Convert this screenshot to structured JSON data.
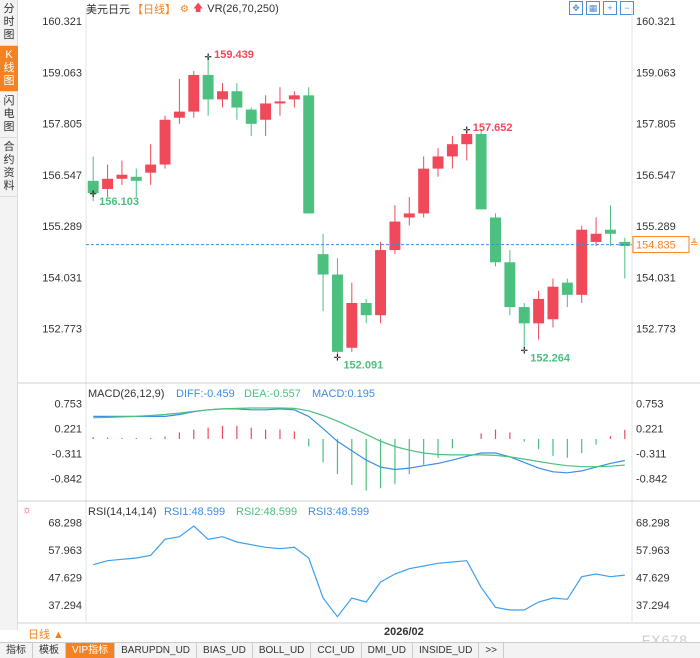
{
  "side_tabs": [
    "分时图",
    "K线图",
    "闪电图",
    "合约资料"
  ],
  "side_active": 1,
  "header": {
    "symbol": "美元日元",
    "period_tag": "【日线】",
    "indicator": "VR(26,70,250)"
  },
  "macd_header": {
    "name": "MACD(26,12,9)",
    "diff": "DIFF:-0.459",
    "dea": "DEA:-0.557",
    "macd": "MACD:0.195"
  },
  "rsi_header": {
    "name": "RSI(14,14,14)",
    "rsi1": "RSI1:48.599",
    "rsi2": "RSI2:48.599",
    "rsi3": "RSI3:48.599"
  },
  "period_selector": "日线 ▲",
  "date_label": "2026/02",
  "watermark": "FX678",
  "bottom_tabs": [
    "指标",
    "模板",
    "VIP指标",
    "BARUPDN_UD",
    "BIAS_UD",
    "BOLL_UD",
    "CCI_UD",
    "DMI_UD",
    "INSIDE_UD",
    ">>"
  ],
  "colors": {
    "up": "#f04a5a",
    "down": "#4cc07f",
    "accent": "#f58220",
    "diff": "#3a8ee6",
    "dea": "#4cc07f",
    "rsi": "#3aa0f0"
  },
  "chart_data": [
    {
      "type": "candlestick",
      "y_ticks": [
        "160.321",
        "159.063",
        "157.805",
        "156.547",
        "155.289",
        "154.031",
        "152.773"
      ],
      "ylim": [
        152.0,
        160.35
      ],
      "last_price": "154.835",
      "annotations": {
        "high1": "159.439",
        "low1": "156.103",
        "low2": "152.091",
        "high2": "157.652",
        "low3": "152.264"
      },
      "candles": [
        [
          156.4,
          156.1,
          157.0,
          155.9
        ],
        [
          156.2,
          156.45,
          156.8,
          156.0
        ],
        [
          156.45,
          156.55,
          156.9,
          156.3
        ],
        [
          156.5,
          156.4,
          156.7,
          156.0
        ],
        [
          156.6,
          156.8,
          157.3,
          156.3
        ],
        [
          156.8,
          157.9,
          158.0,
          156.7
        ],
        [
          157.95,
          158.1,
          158.9,
          157.8
        ],
        [
          158.1,
          159.0,
          159.1,
          157.95
        ],
        [
          159.0,
          158.4,
          159.44,
          158.0
        ],
        [
          158.4,
          158.6,
          158.8,
          158.2
        ],
        [
          158.6,
          158.2,
          158.8,
          157.9
        ],
        [
          158.15,
          157.8,
          158.2,
          157.5
        ],
        [
          157.9,
          158.3,
          158.5,
          157.5
        ],
        [
          158.3,
          158.35,
          158.7,
          158.0
        ],
        [
          158.4,
          158.5,
          158.6,
          158.2
        ],
        [
          158.5,
          155.6,
          158.7,
          155.6
        ],
        [
          154.6,
          154.1,
          155.1,
          153.2
        ],
        [
          154.1,
          152.2,
          154.5,
          152.09
        ],
        [
          152.3,
          153.4,
          153.9,
          152.2
        ],
        [
          153.4,
          153.1,
          153.5,
          152.9
        ],
        [
          153.1,
          154.7,
          154.9,
          152.9
        ],
        [
          154.7,
          155.4,
          155.8,
          154.6
        ],
        [
          155.5,
          155.6,
          156.0,
          155.3
        ],
        [
          155.6,
          156.7,
          157.0,
          155.5
        ],
        [
          156.7,
          157.0,
          157.2,
          156.5
        ],
        [
          157.0,
          157.3,
          157.5,
          156.7
        ],
        [
          157.3,
          157.55,
          157.6,
          156.9
        ],
        [
          157.55,
          155.7,
          157.65,
          155.7
        ],
        [
          155.5,
          154.4,
          155.6,
          154.3
        ],
        [
          154.4,
          153.3,
          154.7,
          153.1
        ],
        [
          153.3,
          152.9,
          153.4,
          152.3
        ],
        [
          152.9,
          153.5,
          153.7,
          152.5
        ],
        [
          153.0,
          153.8,
          154.0,
          152.8
        ],
        [
          153.9,
          153.6,
          154.0,
          153.3
        ],
        [
          153.6,
          155.2,
          155.3,
          153.4
        ],
        [
          154.9,
          155.1,
          155.5,
          154.8
        ],
        [
          155.2,
          155.1,
          155.8,
          154.8
        ],
        [
          154.9,
          154.8,
          155.0,
          154.0
        ]
      ]
    },
    {
      "type": "macd",
      "y_ticks": [
        "0.753",
        "0.221",
        "-0.311",
        "-0.842"
      ],
      "ylim": [
        -1.3,
        1.0
      ],
      "diff": [
        0.48,
        0.48,
        0.48,
        0.48,
        0.48,
        0.48,
        0.52,
        0.58,
        0.62,
        0.64,
        0.64,
        0.62,
        0.62,
        0.64,
        0.62,
        0.48,
        0.22,
        -0.05,
        -0.25,
        -0.45,
        -0.6,
        -0.65,
        -0.62,
        -0.57,
        -0.52,
        -0.45,
        -0.37,
        -0.3,
        -0.3,
        -0.38,
        -0.5,
        -0.62,
        -0.7,
        -0.72,
        -0.68,
        -0.6,
        -0.52,
        -0.459
      ],
      "dea": [
        0.45,
        0.46,
        0.47,
        0.48,
        0.5,
        0.52,
        0.55,
        0.59,
        0.62,
        0.64,
        0.65,
        0.66,
        0.66,
        0.66,
        0.65,
        0.6,
        0.5,
        0.38,
        0.24,
        0.1,
        -0.05,
        -0.16,
        -0.24,
        -0.3,
        -0.33,
        -0.34,
        -0.34,
        -0.34,
        -0.35,
        -0.38,
        -0.43,
        -0.48,
        -0.53,
        -0.57,
        -0.59,
        -0.59,
        -0.58,
        -0.557
      ],
      "hist": [
        0.04,
        0.03,
        0.02,
        0.02,
        0.02,
        0.05,
        0.14,
        0.2,
        0.24,
        0.28,
        0.28,
        0.24,
        0.2,
        0.2,
        0.16,
        -0.16,
        -0.5,
        -0.75,
        -0.98,
        -1.1,
        -1.05,
        -0.96,
        -0.75,
        -0.55,
        -0.4,
        -0.2,
        0.0,
        0.12,
        0.2,
        0.14,
        -0.06,
        -0.22,
        -0.36,
        -0.4,
        -0.3,
        -0.12,
        0.06,
        0.195
      ]
    },
    {
      "type": "line",
      "y_ticks": [
        "68.298",
        "57.963",
        "47.629",
        "37.294"
      ],
      "ylim": [
        31.0,
        70.0
      ],
      "rsi": [
        52.5,
        54,
        54.5,
        55,
        56,
        62,
        63,
        67,
        62,
        63,
        61,
        60,
        59,
        58.5,
        59,
        55,
        40,
        33,
        40,
        38.5,
        46,
        49,
        51,
        52,
        53,
        53.5,
        54,
        44,
        36.5,
        35.5,
        35.5,
        38.5,
        40,
        39.5,
        48,
        49,
        48,
        48.599
      ]
    }
  ]
}
